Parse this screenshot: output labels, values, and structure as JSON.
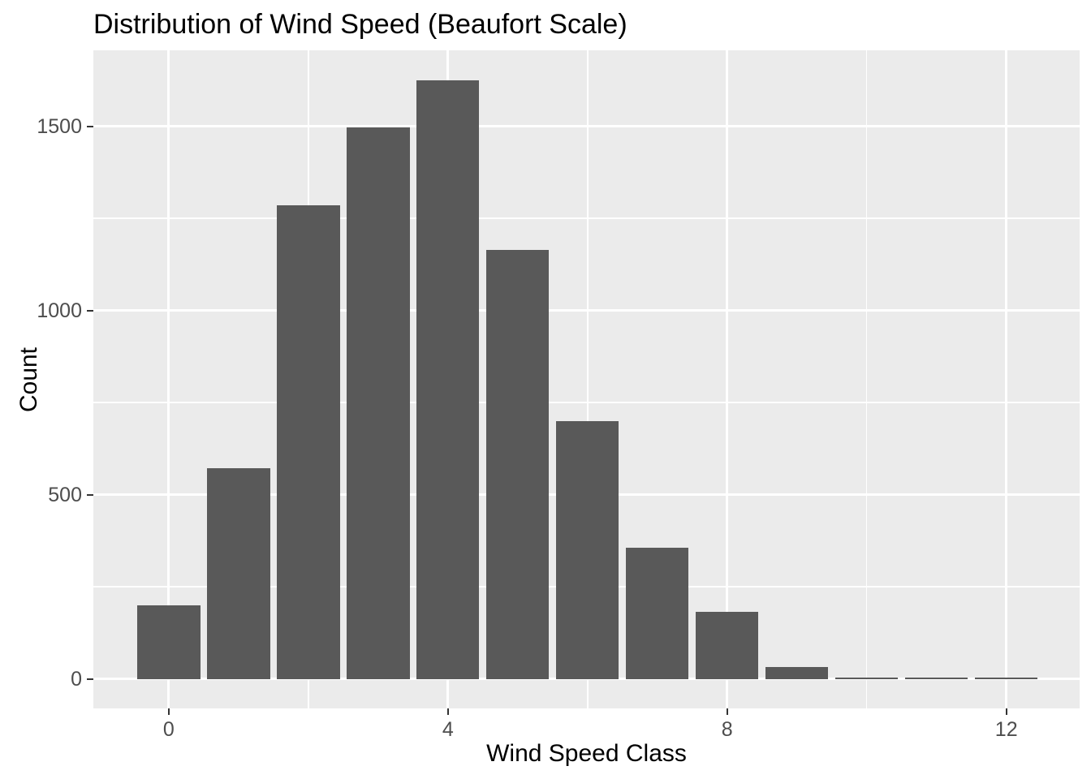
{
  "chart_data": {
    "type": "bar",
    "title": "Distribution of Wind Speed (Beaufort Scale)",
    "xlabel": "Wind Speed Class",
    "ylabel": "Count",
    "categories": [
      0,
      1,
      2,
      3,
      4,
      5,
      6,
      7,
      8,
      9,
      10,
      11,
      12
    ],
    "values": [
      200,
      572,
      1286,
      1497,
      1624,
      1165,
      699,
      355,
      181,
      33,
      4,
      3,
      2
    ],
    "bar_width": 0.9,
    "x_ticks": [
      0,
      4,
      8,
      12
    ],
    "x_tick_labels": [
      "0",
      "4",
      "8",
      "12"
    ],
    "y_ticks": [
      0,
      500,
      1000,
      1500
    ],
    "y_tick_labels": [
      "0",
      "500",
      "1000",
      "1500"
    ],
    "x_minor_gridlines": [
      2,
      6,
      10
    ],
    "y_minor_gridlines": [
      250,
      750,
      1250
    ],
    "xlim": [
      -1.08,
      13.05
    ],
    "ylim": [
      -80,
      1706
    ],
    "grid": true,
    "legend": false,
    "colors": {
      "bar": "#595959",
      "panel_background": "#EBEBEB",
      "gridline": "#FFFFFF",
      "tick_mark": "#333333",
      "tick_label": "#4D4D4D",
      "title": "#000000",
      "axis_title": "#000000",
      "page_background": "#FFFFFF"
    }
  }
}
